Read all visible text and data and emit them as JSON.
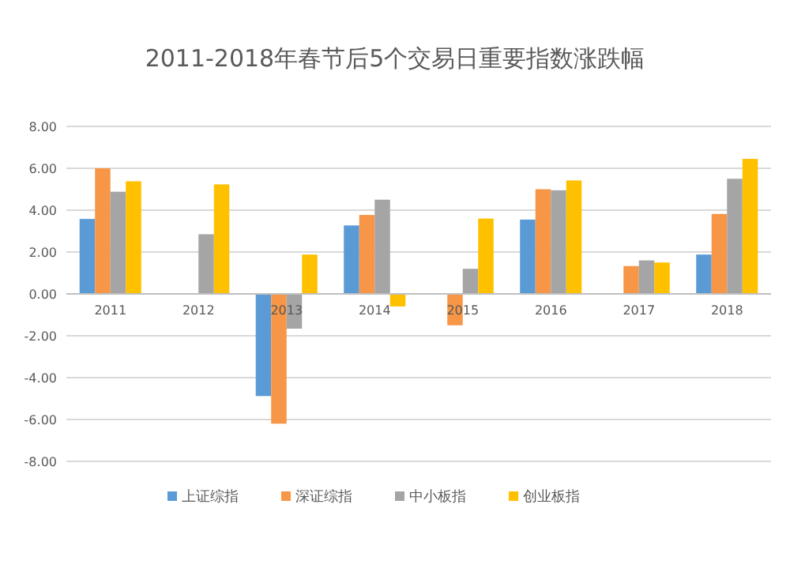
{
  "chart_data": {
    "type": "bar",
    "title": "2011-2018年春节后5个交易日重要指数涨跌幅",
    "categories": [
      "2011",
      "2012",
      "2013",
      "2014",
      "2015",
      "2016",
      "2017",
      "2018"
    ],
    "series": [
      {
        "name": "上证综指",
        "color": "#5b9bd5",
        "values": [
          3.58,
          null,
          -4.88,
          3.27,
          null,
          3.55,
          null,
          1.88
        ]
      },
      {
        "name": "深证综指",
        "color": "#f79646",
        "values": [
          6.0,
          null,
          -6.2,
          3.77,
          -1.5,
          5.0,
          1.33,
          3.82
        ]
      },
      {
        "name": "中小板指",
        "color": "#a5a5a5",
        "values": [
          4.88,
          2.85,
          -1.66,
          4.5,
          1.2,
          4.95,
          1.6,
          5.5
        ]
      },
      {
        "name": "创业板指",
        "color": "#ffc000",
        "values": [
          5.38,
          5.23,
          1.88,
          -0.6,
          3.6,
          5.42,
          1.5,
          6.45
        ]
      }
    ],
    "ylim": [
      -8,
      8
    ],
    "yticks": [
      {
        "value": -8,
        "label": "-8.00"
      },
      {
        "value": -6,
        "label": "-6.00"
      },
      {
        "value": -4,
        "label": "-4.00"
      },
      {
        "value": -2,
        "label": "-2.00"
      },
      {
        "value": 0,
        "label": "0.00"
      },
      {
        "value": 2,
        "label": "2.00"
      },
      {
        "value": 4,
        "label": "4.00"
      },
      {
        "value": 6,
        "label": "6.00"
      },
      {
        "value": 8,
        "label": "8.00"
      }
    ],
    "grid": "y",
    "legend": "bottom"
  }
}
